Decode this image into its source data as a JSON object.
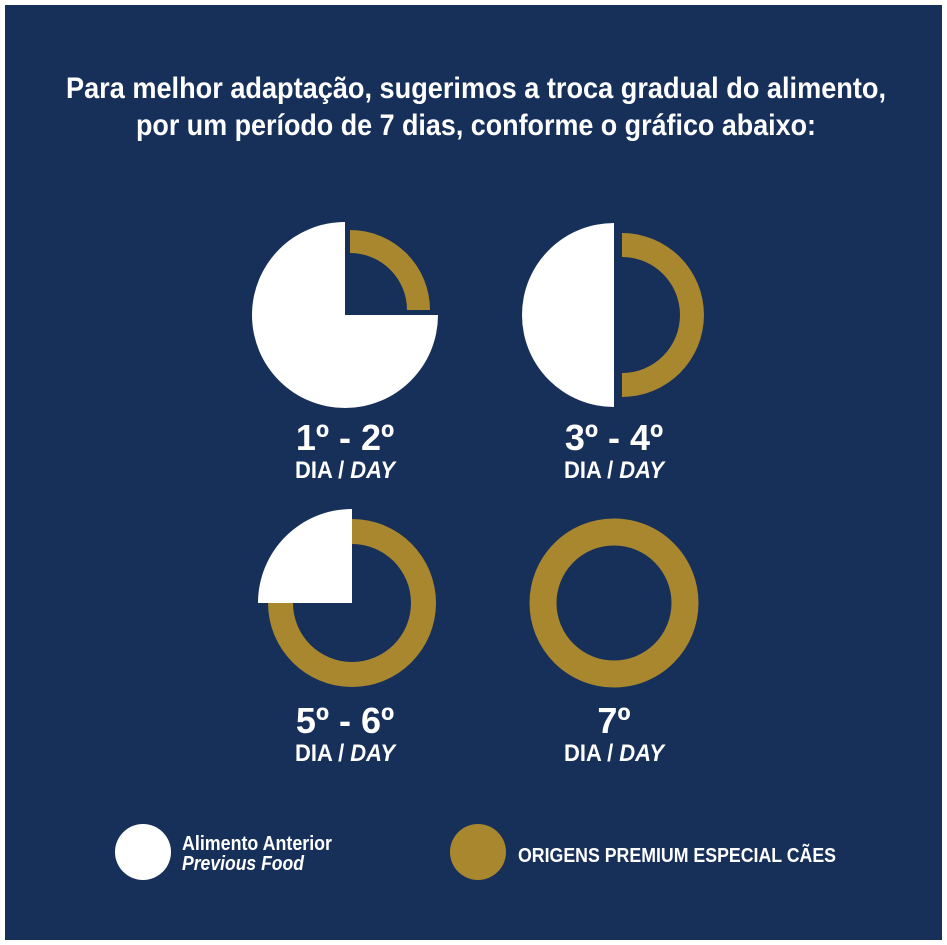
{
  "header": {
    "lines": [
      "Para melhor adaptação, sugerimos a troca gradual do alimento,",
      "por um período de 7 dias, conforme o gráfico abaixo:"
    ]
  },
  "panels": [
    {
      "days": "1º - 2º",
      "label_pt": "DIA /",
      "label_en": "DAY"
    },
    {
      "days": "3º - 4º",
      "label_pt": "DIA /",
      "label_en": "DAY"
    },
    {
      "days": "5º - 6º",
      "label_pt": "DIA /",
      "label_en": "DAY"
    },
    {
      "days": "7º",
      "label_pt": "DIA /",
      "label_en": "DAY"
    }
  ],
  "legend": [
    {
      "label": "Alimento Anterior",
      "label_en": "Previous Food"
    },
    {
      "label": "ORIGENS PREMIUM ESPECIAL CÃES"
    }
  ]
}
